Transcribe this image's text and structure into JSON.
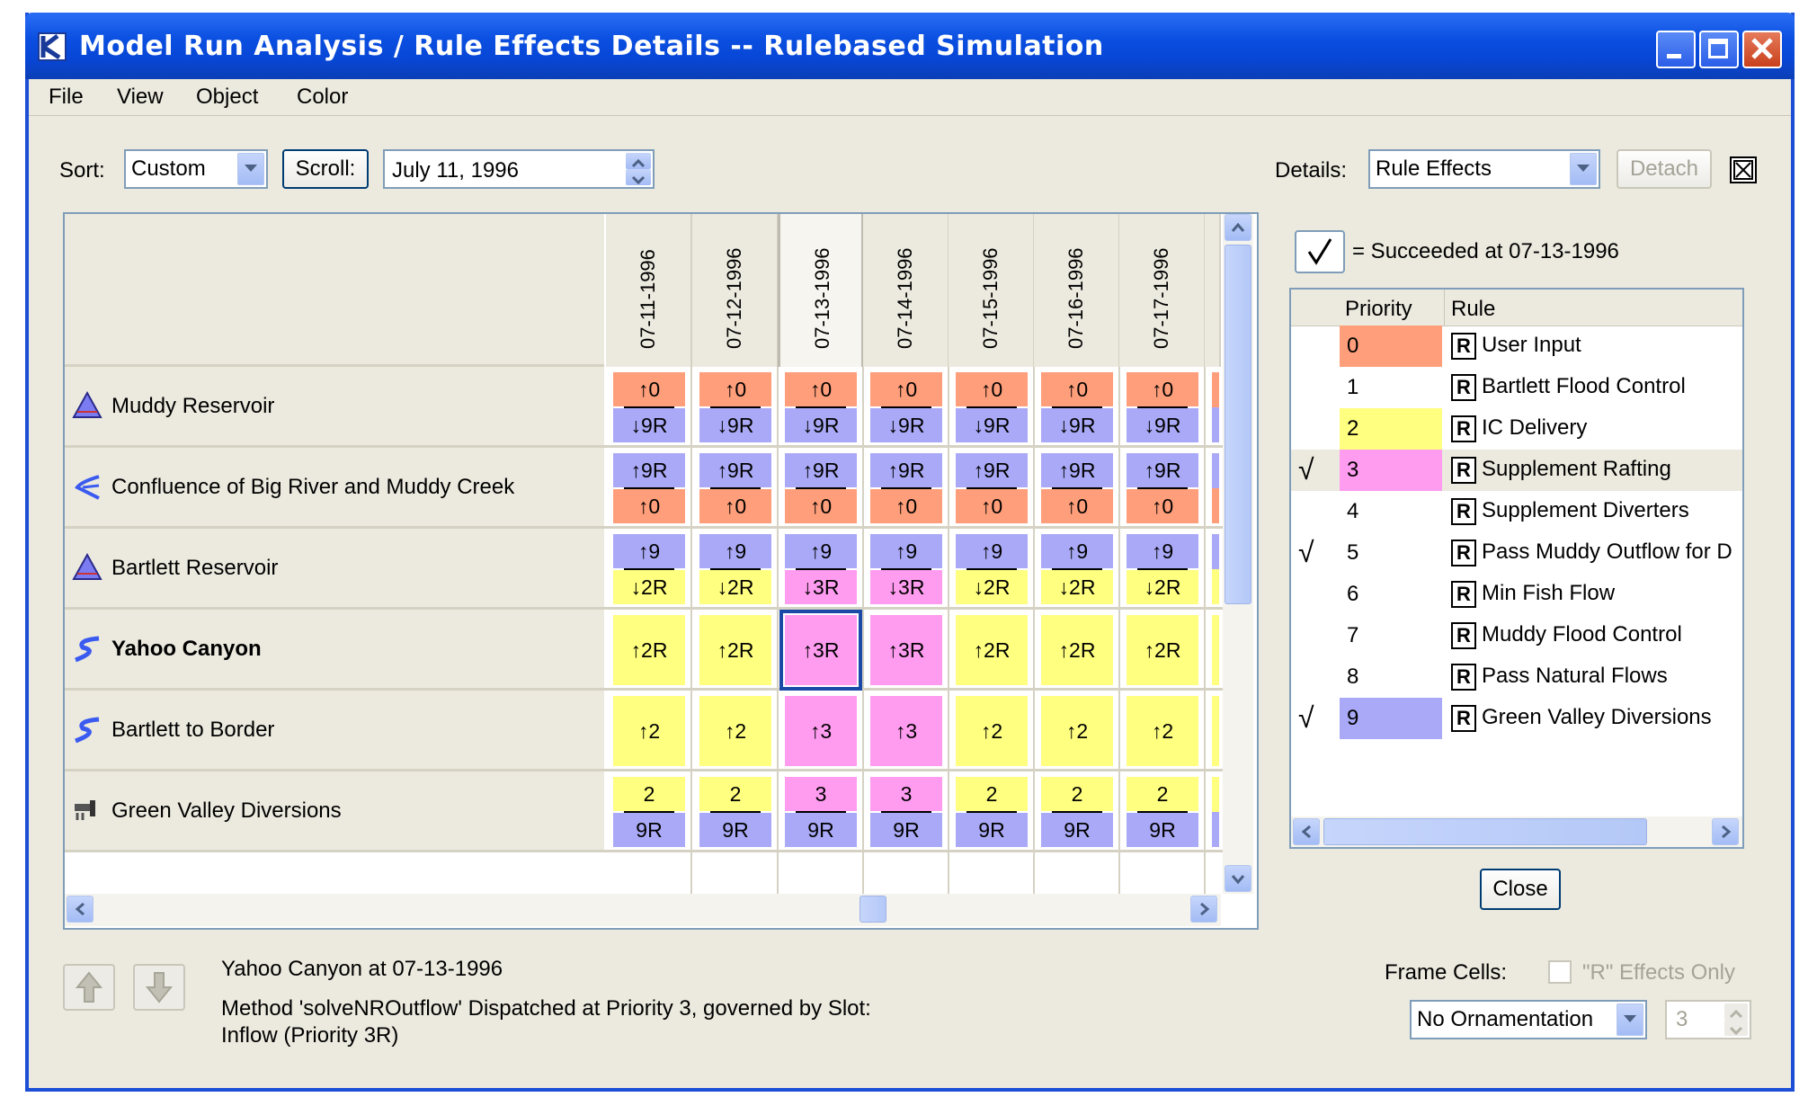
{
  "window": {
    "title": "Model Run Analysis / Rule Effects Details  -- Rulebased Simulation"
  },
  "menu": [
    "File",
    "View",
    "Object",
    "Color"
  ],
  "toolbar": {
    "sort_label": "Sort:",
    "sort_value": "Custom",
    "scroll_button": "Scroll:",
    "date_value": "July 11, 1996",
    "details_label": "Details:",
    "details_value": "Rule Effects",
    "detach_button": "Detach"
  },
  "grid": {
    "dates": [
      "07-11-1996",
      "07-12-1996",
      "07-13-1996",
      "07-14-1996",
      "07-15-1996",
      "07-16-1996",
      "07-17-1996"
    ],
    "rows": [
      {
        "name": "Muddy Reservoir",
        "icon": "reservoir-icon",
        "cells": [
          {
            "top": "↑0",
            "bottom": "↓9R",
            "tc": "or",
            "bc": "bl"
          },
          {
            "top": "↑0",
            "bottom": "↓9R",
            "tc": "or",
            "bc": "bl"
          },
          {
            "top": "↑0",
            "bottom": "↓9R",
            "tc": "or",
            "bc": "bl"
          },
          {
            "top": "↑0",
            "bottom": "↓9R",
            "tc": "or",
            "bc": "bl"
          },
          {
            "top": "↑0",
            "bottom": "↓9R",
            "tc": "or",
            "bc": "bl"
          },
          {
            "top": "↑0",
            "bottom": "↓9R",
            "tc": "or",
            "bc": "bl"
          },
          {
            "top": "↑0",
            "bottom": "↓9R",
            "tc": "or",
            "bc": "bl"
          }
        ]
      },
      {
        "name": "Confluence of Big River and Muddy Creek",
        "icon": "confluence-icon",
        "cells": [
          {
            "top": "↑9R",
            "bottom": "↑0",
            "tc": "bl",
            "bc": "or"
          },
          {
            "top": "↑9R",
            "bottom": "↑0",
            "tc": "bl",
            "bc": "or"
          },
          {
            "top": "↑9R",
            "bottom": "↑0",
            "tc": "bl",
            "bc": "or"
          },
          {
            "top": "↑9R",
            "bottom": "↑0",
            "tc": "bl",
            "bc": "or"
          },
          {
            "top": "↑9R",
            "bottom": "↑0",
            "tc": "bl",
            "bc": "or"
          },
          {
            "top": "↑9R",
            "bottom": "↑0",
            "tc": "bl",
            "bc": "or"
          },
          {
            "top": "↑9R",
            "bottom": "↑0",
            "tc": "bl",
            "bc": "or"
          }
        ]
      },
      {
        "name": "Bartlett Reservoir",
        "icon": "reservoir-icon",
        "cells": [
          {
            "top": "↑9",
            "bottom": "↓2R",
            "tc": "bl",
            "bc": "ye"
          },
          {
            "top": "↑9",
            "bottom": "↓2R",
            "tc": "bl",
            "bc": "ye"
          },
          {
            "top": "↑9",
            "bottom": "↓3R",
            "tc": "bl",
            "bc": "pk"
          },
          {
            "top": "↑9",
            "bottom": "↓3R",
            "tc": "bl",
            "bc": "pk"
          },
          {
            "top": "↑9",
            "bottom": "↓2R",
            "tc": "bl",
            "bc": "ye"
          },
          {
            "top": "↑9",
            "bottom": "↓2R",
            "tc": "bl",
            "bc": "ye"
          },
          {
            "top": "↑9",
            "bottom": "↓2R",
            "tc": "bl",
            "bc": "ye"
          }
        ]
      },
      {
        "name": "Yahoo Canyon",
        "icon": "reach-icon",
        "bold": true,
        "cells": [
          {
            "full": "↑2R",
            "fc": "ye"
          },
          {
            "full": "↑2R",
            "fc": "ye"
          },
          {
            "full": "↑3R",
            "fc": "pk",
            "selected": true
          },
          {
            "full": "↑3R",
            "fc": "pk"
          },
          {
            "full": "↑2R",
            "fc": "ye"
          },
          {
            "full": "↑2R",
            "fc": "ye"
          },
          {
            "full": "↑2R",
            "fc": "ye"
          }
        ]
      },
      {
        "name": "Bartlett to Border",
        "icon": "reach-icon",
        "cells": [
          {
            "full": "↑2",
            "fc": "ye"
          },
          {
            "full": "↑2",
            "fc": "ye"
          },
          {
            "full": "↑3",
            "fc": "pk"
          },
          {
            "full": "↑3",
            "fc": "pk"
          },
          {
            "full": "↑2",
            "fc": "ye"
          },
          {
            "full": "↑2",
            "fc": "ye"
          },
          {
            "full": "↑2",
            "fc": "ye"
          }
        ]
      },
      {
        "name": "Green Valley Diversions",
        "icon": "diversion-icon",
        "cells": [
          {
            "top": "2",
            "bottom": "9R",
            "tc": "ye",
            "bc": "bl"
          },
          {
            "top": "2",
            "bottom": "9R",
            "tc": "ye",
            "bc": "bl"
          },
          {
            "top": "3",
            "bottom": "9R",
            "tc": "pk",
            "bc": "bl"
          },
          {
            "top": "3",
            "bottom": "9R",
            "tc": "pk",
            "bc": "bl"
          },
          {
            "top": "2",
            "bottom": "9R",
            "tc": "ye",
            "bc": "bl"
          },
          {
            "top": "2",
            "bottom": "9R",
            "tc": "ye",
            "bc": "bl"
          },
          {
            "top": "2",
            "bottom": "9R",
            "tc": "ye",
            "bc": "bl"
          }
        ]
      }
    ]
  },
  "legend": {
    "text": "= Succeeded at 07-13-1996"
  },
  "rules_table": {
    "headers": [
      "Priority",
      "Rule"
    ],
    "rows": [
      {
        "priority": "0",
        "rule": "User Input",
        "color": "or",
        "check": ""
      },
      {
        "priority": "1",
        "rule": "Bartlett Flood Control",
        "color": "",
        "check": ""
      },
      {
        "priority": "2",
        "rule": "IC Delivery",
        "color": "ye",
        "check": ""
      },
      {
        "priority": "3",
        "rule": "Supplement Rafting",
        "color": "pk",
        "check": "√",
        "highlight": true
      },
      {
        "priority": "4",
        "rule": "Supplement Diverters",
        "color": "",
        "check": ""
      },
      {
        "priority": "5",
        "rule": "Pass Muddy Outflow for D",
        "color": "",
        "check": "√"
      },
      {
        "priority": "6",
        "rule": "Min Fish Flow",
        "color": "",
        "check": ""
      },
      {
        "priority": "7",
        "rule": "Muddy Flood Control",
        "color": "",
        "check": ""
      },
      {
        "priority": "8",
        "rule": "Pass Natural Flows",
        "color": "",
        "check": ""
      },
      {
        "priority": "9",
        "rule": "Green Valley Diversions",
        "color": "bl",
        "check": "√"
      }
    ],
    "r_glyph": "R"
  },
  "close_button": "Close",
  "status": {
    "line1": "Yahoo Canyon at 07-13-1996",
    "line2": "Method 'solveNROutflow' Dispatched at Priority 3, governed by Slot:",
    "line3": "Inflow (Priority 3R)"
  },
  "frame_cells": {
    "label": "Frame Cells:",
    "r_effects_label": "\"R\" Effects Only",
    "ornamentation_value": "No Ornamentation",
    "spinner_value": "3"
  },
  "colors": {
    "or": "#ff9e7a",
    "bl": "#a9a9f7",
    "ye": "#ffff80",
    "pk": "#ff9cf0",
    "title_blue": "#0846d6"
  }
}
